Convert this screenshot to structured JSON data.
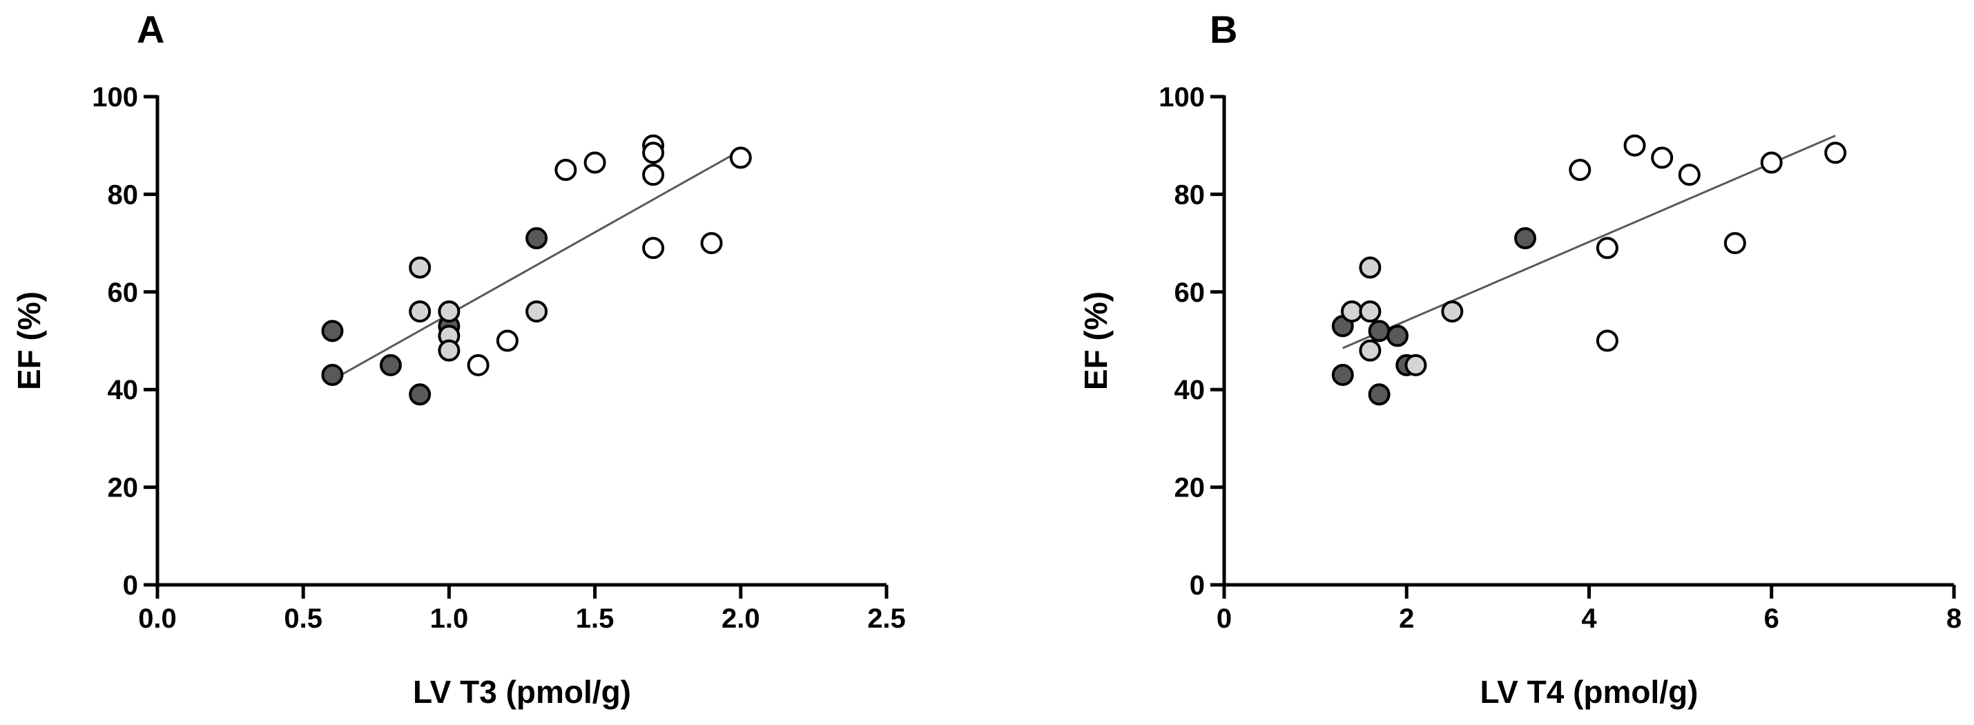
{
  "colors": {
    "dark": "#595959",
    "light": "#d4d4d4",
    "open": "#ffffff",
    "line": "#595959"
  },
  "chart_data": [
    {
      "type": "scatter",
      "panel_label": "A",
      "xlabel": "LV T3 (pmol/g)",
      "ylabel": "EF (%)",
      "xlim": [
        0,
        2.5
      ],
      "ylim": [
        0,
        100
      ],
      "x_ticks": [
        0.0,
        0.5,
        1.0,
        1.5,
        2.0,
        2.5
      ],
      "x_tick_labels": [
        "0.0",
        "0.5",
        "1.0",
        "1.5",
        "2.0",
        "2.5"
      ],
      "y_ticks": [
        0,
        20,
        40,
        60,
        80,
        100
      ],
      "y_tick_labels": [
        "0",
        "20",
        "40",
        "60",
        "80",
        "100"
      ],
      "grid": false,
      "series": [
        {
          "color_key": "dark",
          "points": [
            {
              "x": 0.6,
              "y": 52
            },
            {
              "x": 0.6,
              "y": 43
            },
            {
              "x": 0.8,
              "y": 45
            },
            {
              "x": 0.9,
              "y": 39
            },
            {
              "x": 1.0,
              "y": 53
            },
            {
              "x": 1.3,
              "y": 71
            }
          ]
        },
        {
          "color_key": "light",
          "points": [
            {
              "x": 0.9,
              "y": 65
            },
            {
              "x": 0.9,
              "y": 56
            },
            {
              "x": 1.0,
              "y": 56
            },
            {
              "x": 1.0,
              "y": 51
            },
            {
              "x": 1.0,
              "y": 48
            },
            {
              "x": 1.3,
              "y": 56
            }
          ]
        },
        {
          "color_key": "open",
          "points": [
            {
              "x": 1.1,
              "y": 45
            },
            {
              "x": 1.2,
              "y": 50
            },
            {
              "x": 1.4,
              "y": 85
            },
            {
              "x": 1.5,
              "y": 86.5
            },
            {
              "x": 1.7,
              "y": 90
            },
            {
              "x": 1.7,
              "y": 88.5
            },
            {
              "x": 1.7,
              "y": 84
            },
            {
              "x": 1.7,
              "y": 69
            },
            {
              "x": 1.9,
              "y": 70
            },
            {
              "x": 2.0,
              "y": 87.5
            }
          ]
        }
      ],
      "fit_line": {
        "x": [
          0.6,
          2.0
        ],
        "y": [
          42,
          89
        ]
      }
    },
    {
      "type": "scatter",
      "panel_label": "B",
      "xlabel": "LV T4 (pmol/g)",
      "ylabel": "EF (%)",
      "xlim": [
        0,
        8
      ],
      "ylim": [
        0,
        100
      ],
      "x_ticks": [
        0,
        2,
        4,
        6,
        8
      ],
      "x_tick_labels": [
        "0",
        "2",
        "4",
        "6",
        "8"
      ],
      "y_ticks": [
        0,
        20,
        40,
        60,
        80,
        100
      ],
      "y_tick_labels": [
        "0",
        "20",
        "40",
        "60",
        "80",
        "100"
      ],
      "grid": false,
      "series": [
        {
          "color_key": "dark",
          "points": [
            {
              "x": 1.3,
              "y": 53
            },
            {
              "x": 1.3,
              "y": 43
            },
            {
              "x": 1.7,
              "y": 52
            },
            {
              "x": 1.7,
              "y": 39
            },
            {
              "x": 1.9,
              "y": 51
            },
            {
              "x": 2.0,
              "y": 45
            },
            {
              "x": 3.3,
              "y": 71
            }
          ]
        },
        {
          "color_key": "light",
          "points": [
            {
              "x": 1.4,
              "y": 56
            },
            {
              "x": 1.6,
              "y": 65
            },
            {
              "x": 1.6,
              "y": 56
            },
            {
              "x": 1.6,
              "y": 48
            },
            {
              "x": 2.1,
              "y": 45
            },
            {
              "x": 2.5,
              "y": 56
            }
          ]
        },
        {
          "color_key": "open",
          "points": [
            {
              "x": 3.9,
              "y": 85
            },
            {
              "x": 4.2,
              "y": 69
            },
            {
              "x": 4.2,
              "y": 50
            },
            {
              "x": 4.5,
              "y": 90
            },
            {
              "x": 4.8,
              "y": 87.5
            },
            {
              "x": 5.1,
              "y": 84
            },
            {
              "x": 5.6,
              "y": 70
            },
            {
              "x": 6.0,
              "y": 86.5
            },
            {
              "x": 6.7,
              "y": 88.5
            }
          ]
        }
      ],
      "fit_line": {
        "x": [
          1.3,
          6.7
        ],
        "y": [
          48.5,
          92
        ]
      }
    }
  ]
}
